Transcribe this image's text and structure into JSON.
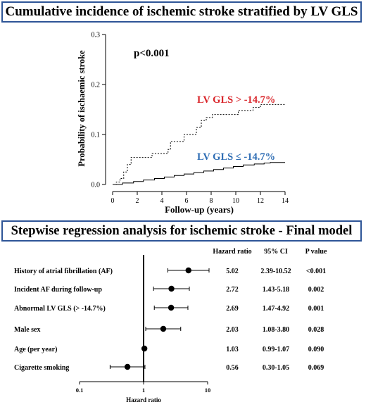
{
  "panel1": {
    "title": "Cumulative incidence of ischemic stroke stratified by LV GLS"
  },
  "panel2": {
    "title": "Stepwise regression analysis for ischemic stroke - Final model"
  },
  "colors": {
    "border": "#2e5597",
    "red": "#d9262b",
    "blue": "#2e6db4"
  },
  "chart_data": [
    {
      "type": "line",
      "subtype": "step",
      "title": "",
      "xlabel": "Follow-up (years)",
      "ylabel": "Probability of ischaemic stroke",
      "xlim": [
        0,
        14
      ],
      "ylim": [
        0,
        0.3
      ],
      "xticks": [
        0,
        2,
        4,
        6,
        8,
        10,
        12,
        14
      ],
      "yticks": [
        "0.0",
        "0.1",
        "0.2",
        "0.3"
      ],
      "annotation": "p<0.001",
      "series": [
        {
          "name": "LV GLS > -14.7%",
          "color": "#d9262b",
          "line_style": "dotted",
          "points": [
            [
              0,
              0
            ],
            [
              0.3,
              0.005
            ],
            [
              0.6,
              0.012
            ],
            [
              0.9,
              0.025
            ],
            [
              1.2,
              0.04
            ],
            [
              1.5,
              0.054
            ],
            [
              3.2,
              0.062
            ],
            [
              4.5,
              0.07
            ],
            [
              4.7,
              0.086
            ],
            [
              5.8,
              0.1
            ],
            [
              6.8,
              0.114
            ],
            [
              7.2,
              0.128
            ],
            [
              7.6,
              0.134
            ],
            [
              8.1,
              0.14
            ],
            [
              10.2,
              0.148
            ],
            [
              11.4,
              0.154
            ],
            [
              12.0,
              0.16
            ],
            [
              14,
              0.16
            ]
          ]
        },
        {
          "name": "LV GLS ≤ -14.7%",
          "color": "#2e6db4",
          "line_style": "solid",
          "points": [
            [
              0,
              0
            ],
            [
              0.8,
              0.003
            ],
            [
              1.7,
              0.006
            ],
            [
              2.5,
              0.009
            ],
            [
              3.4,
              0.012
            ],
            [
              4.2,
              0.015
            ],
            [
              5.0,
              0.018
            ],
            [
              5.8,
              0.021
            ],
            [
              6.6,
              0.024
            ],
            [
              7.4,
              0.027
            ],
            [
              8.2,
              0.03
            ],
            [
              9.0,
              0.033
            ],
            [
              9.8,
              0.036
            ],
            [
              10.6,
              0.039
            ],
            [
              11.5,
              0.041
            ],
            [
              12.3,
              0.043
            ],
            [
              12.8,
              0.044
            ],
            [
              14,
              0.044
            ]
          ]
        }
      ]
    },
    {
      "type": "scatter",
      "subtype": "forest",
      "xlabel": "Hazard ratio",
      "xscale": "log",
      "xlim": [
        0.1,
        10
      ],
      "xticks": [
        "0.1",
        "1",
        "10"
      ],
      "reference_line": 1,
      "columns": [
        "Hazard ratio",
        "95% CI",
        "P value"
      ],
      "rows": [
        {
          "label": "History of atrial fibrillation (AF)",
          "hr": 5.02,
          "lo": 2.39,
          "hi": 10.52,
          "hr_text": "5.02",
          "ci_text": "2.39-10.52",
          "p_text": "<0.001"
        },
        {
          "label": "Incident AF during follow-up",
          "hr": 2.72,
          "lo": 1.43,
          "hi": 5.18,
          "hr_text": "2.72",
          "ci_text": "1.43-5.18",
          "p_text": "0.002"
        },
        {
          "label": "Abnormal LV GLS (> -14.7%)",
          "hr": 2.69,
          "lo": 1.47,
          "hi": 4.92,
          "hr_text": "2.69",
          "ci_text": "1.47-4.92",
          "p_text": "0.001"
        },
        {
          "label": "Male sex",
          "hr": 2.03,
          "lo": 1.08,
          "hi": 3.8,
          "hr_text": "2.03",
          "ci_text": "1.08-3.80",
          "p_text": "0.028"
        },
        {
          "label": "Age (per year)",
          "hr": 1.03,
          "lo": 0.99,
          "hi": 1.07,
          "hr_text": "1.03",
          "ci_text": "0.99-1.07",
          "p_text": "0.090"
        },
        {
          "label": "Cigarette smoking",
          "hr": 0.56,
          "lo": 0.3,
          "hi": 1.05,
          "hr_text": "0.56",
          "ci_text": "0.30-1.05",
          "p_text": "0.069"
        }
      ]
    }
  ]
}
